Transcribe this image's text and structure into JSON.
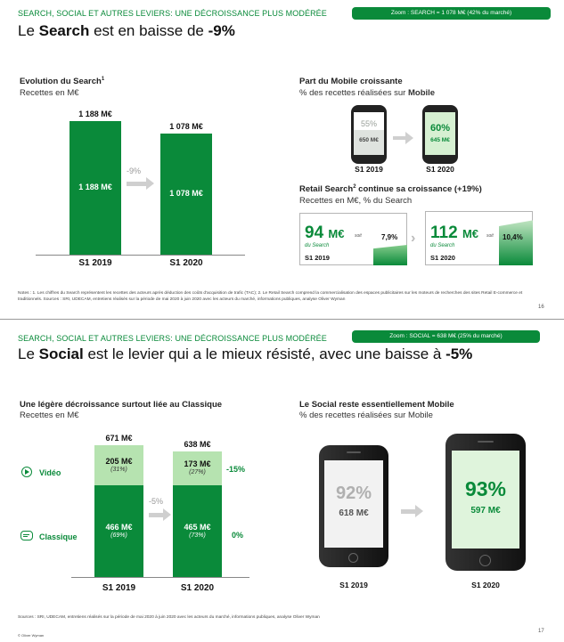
{
  "slide16": {
    "supertitle": "SEARCH, SOCIAL ET AUTRES LEVIERS: UNE DÉCROISSANCE PLUS MODÉRÉE",
    "zoom": "Zoom : SEARCH = 1 078 M€ (42% du marché)",
    "title_pre": "Le ",
    "title_bold": "Search",
    "title_mid": " est en baisse de ",
    "title_end": "-9%",
    "left": {
      "heading": "Evolution du Search",
      "heading_sup": "1",
      "subtitle": "Recettes en M€",
      "change": "-9%"
    },
    "right": {
      "heading": "Part du Mobile croissante",
      "subtitle_pre": "% des recettes réalisées sur ",
      "subtitle_bold": "Mobile",
      "phones": [
        {
          "pct": "55%",
          "val": "650 M€",
          "label": "S1 2019"
        },
        {
          "pct": "60%",
          "val": "645 M€",
          "label": "S1 2020"
        }
      ],
      "retail_heading": "Retail Search",
      "retail_sup": "2",
      "retail_heading_end": " continue sa croissance (+19%)",
      "retail_subtitle": "Recettes en M€, % du Search",
      "cards": [
        {
          "big": "94",
          "unit": "M€",
          "soit": "soit",
          "share": "7,9%",
          "label": "du Search",
          "year": "S1 2019"
        },
        {
          "big": "112",
          "unit": "M€",
          "soit": "soit",
          "share": "10,4%",
          "label": "du Search",
          "year": "S1 2020"
        }
      ]
    },
    "note": "Notes : 1. Les chiffres du Search représentent les recettes des acteurs après déduction des coûts d'acquisition de trafic (TAC); 2. Le Retail Search comprend la commercialisation des espaces publicitaires sur les moteurs de recherches des sites Retail E-commerce et traditionnels. Sources : SRI, UDECAM, entretiens réalisés sur la période de mai 2020 à juin 2020 avec les acteurs du marché, informations publiques, analyse Oliver Wyman",
    "page": "16"
  },
  "slide17": {
    "supertitle": "SEARCH, SOCIAL ET AUTRES LEVIERS: UNE DÉCROISSANCE PLUS MODÉRÉE",
    "zoom": "Zoom : SOCIAL = 638 M€ (25% du marché)",
    "title_pre": "Le ",
    "title_bold": "Social",
    "title_mid": " est le levier qui a le mieux résisté, avec une baisse à ",
    "title_end": "-5%",
    "left": {
      "heading": "Une légère décroissance surtout liée au Classique",
      "subtitle": "Recettes en M€",
      "legend_video": "Vidéo",
      "legend_classique": "Classique",
      "change": "-5%",
      "video_change": "-15%",
      "classique_change": "0%"
    },
    "right": {
      "heading": "Le Social reste essentiellement Mobile",
      "subtitle": "% des recettes réalisées sur Mobile",
      "phones": [
        {
          "pct": "92%",
          "val": "618 M€",
          "label": "S1 2019"
        },
        {
          "pct": "93%",
          "val": "597 M€",
          "label": "S1 2020"
        }
      ]
    },
    "note": "Sources : SRI, UDECAM, entretiens réalisés sur la période de mai 2020 à juin 2020 avec les acteurs du marché, informations publiques, analyse Oliver Wyman",
    "copyright": "© Oliver Wyman",
    "page": "17"
  },
  "chart_data": [
    {
      "type": "bar",
      "title": "Evolution du Search",
      "ylabel": "Recettes en M€",
      "categories": [
        "S1 2019",
        "S1 2020"
      ],
      "values": [
        1188,
        1078
      ],
      "labels": [
        "1 188 M€",
        "1 078 M€"
      ],
      "top_labels": [
        "1 188 M€",
        "1 078 M€"
      ]
    },
    {
      "type": "bar",
      "title": "Une légère décroissance surtout liée au Classique",
      "ylabel": "Recettes en M€",
      "categories": [
        "S1 2019",
        "S1 2020"
      ],
      "totals": [
        "671 M€",
        "638 M€"
      ],
      "series": [
        {
          "name": "Classique",
          "values": [
            466,
            465
          ],
          "labels": [
            "466 M€",
            "465 M€"
          ],
          "shares": [
            "(69%)",
            "(73%)"
          ]
        },
        {
          "name": "Vidéo",
          "values": [
            205,
            173
          ],
          "labels": [
            "205 M€",
            "173 M€"
          ],
          "shares": [
            "(31%)",
            "(27%)"
          ]
        }
      ],
      "colors": {
        "Classique": "#0a8a3a",
        "Vidéo": "#b6e3b0"
      }
    }
  ]
}
